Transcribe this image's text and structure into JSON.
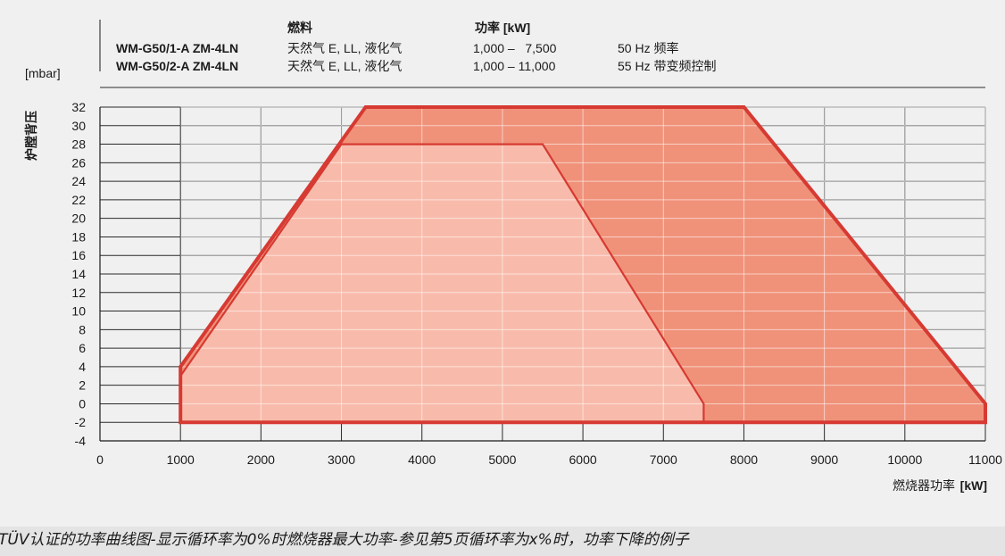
{
  "header": {
    "col_fuel": "燃料",
    "col_power": "功率 [kW]",
    "rows": [
      {
        "model": "WM-G50/1-A ZM-4LN",
        "fuel": "天然气 E, LL, 液化气",
        "range": "1,000 –   7,500",
        "note": "50 Hz 频率"
      },
      {
        "model": "WM-G50/2-A ZM-4LN",
        "fuel": "天然气 E, LL, 液化气",
        "range": "1,000 – 11,000",
        "note": "55 Hz 带变频控制"
      }
    ]
  },
  "chart_data": {
    "type": "area",
    "ylabel": "炉膛背压",
    "yunit": "[mbar]",
    "xlabel": "燃烧器功率",
    "xunit": "[kW]",
    "xlim": [
      0,
      11000
    ],
    "ylim": [
      -4,
      32
    ],
    "xticks": [
      0,
      1000,
      2000,
      3000,
      4000,
      5000,
      6000,
      7000,
      8000,
      9000,
      10000,
      11000
    ],
    "yticks": [
      32,
      30,
      28,
      26,
      24,
      22,
      20,
      18,
      16,
      14,
      12,
      10,
      8,
      6,
      4,
      2,
      0,
      -2,
      -4
    ],
    "grid": true,
    "series": [
      {
        "name": "WM-G50/2-A ZM-4LN",
        "color": "#f0927a",
        "outline": "#d63a32",
        "points": [
          [
            1000,
            -2
          ],
          [
            1000,
            4
          ],
          [
            3300,
            32
          ],
          [
            8000,
            32
          ],
          [
            11000,
            0
          ],
          [
            11000,
            -2
          ]
        ]
      },
      {
        "name": "WM-G50/1-A ZM-4LN",
        "color": "#f8c0b0",
        "outline": "#d63a32",
        "points": [
          [
            1000,
            -2
          ],
          [
            1000,
            3
          ],
          [
            3000,
            28
          ],
          [
            5500,
            28
          ],
          [
            7500,
            0
          ],
          [
            7500,
            -2
          ]
        ]
      }
    ]
  },
  "caption": "TÜV认证的功率曲线图-显示循环率为0%时燃烧器最大功率-参见第5页循环率为x%时，功率下降的例子"
}
